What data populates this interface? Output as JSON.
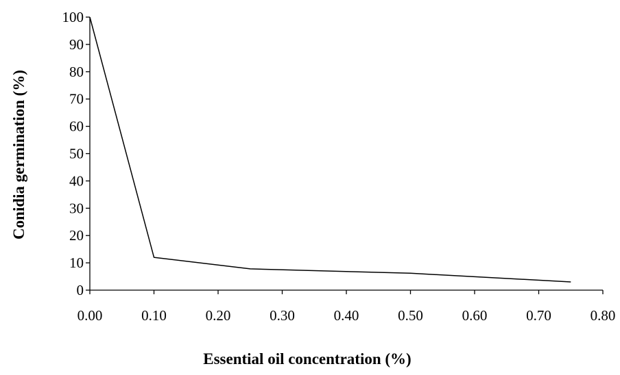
{
  "chart_data": {
    "type": "line",
    "title": "",
    "xlabel": "Essential oil concentration (%)",
    "ylabel": "Conidia germination (%)",
    "xlim": [
      0,
      0.8
    ],
    "ylim": [
      0,
      100
    ],
    "xticks": [
      "0.00",
      "0.10",
      "0.20",
      "0.30",
      "0.40",
      "0.50",
      "0.60",
      "0.70",
      "0.80"
    ],
    "yticks": [
      "0",
      "10",
      "20",
      "30",
      "40",
      "50",
      "60",
      "70",
      "80",
      "90",
      "100"
    ],
    "grid": false,
    "legend": "none",
    "series": [
      {
        "x": [
          0,
          0.1,
          0.25,
          0.5,
          0.75
        ],
        "y": [
          100,
          12,
          7.8,
          6.2,
          3
        ]
      }
    ],
    "line_color": "#000000"
  }
}
